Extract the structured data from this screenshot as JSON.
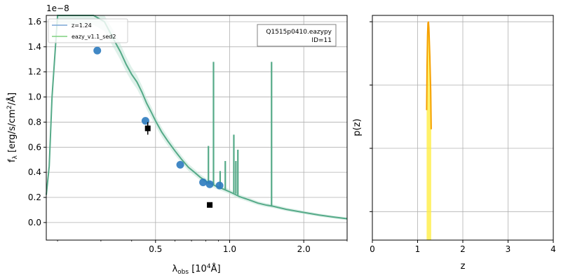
{
  "chart_data": [
    {
      "type": "line",
      "panel": "sed",
      "offset_label": "1e−8",
      "xlabel_html": "λ<tspan dy='3' font-size='9'>obs</tspan><tspan dy='-3'> [10</tspan><tspan dy='-5' font-size='9'>4</tspan><tspan dy='5'>Å]</tspan>",
      "ylabel": "f_λ [erg/s/cm²/Å]",
      "x_scale": "log",
      "xlim": [
        0.18,
        3.0
      ],
      "ylim": [
        -0.14,
        1.65
      ],
      "x_ticks": [
        {
          "value": 0.5,
          "label": "0.5"
        },
        {
          "value": 1.0,
          "label": "1.0"
        },
        {
          "value": 2.0,
          "label": "2.0"
        }
      ],
      "y_ticks": [
        {
          "value": 0.0,
          "label": "0.0"
        },
        {
          "value": 0.2,
          "label": "0.2"
        },
        {
          "value": 0.4,
          "label": "0.4"
        },
        {
          "value": 0.6,
          "label": "0.6"
        },
        {
          "value": 0.8,
          "label": "0.8"
        },
        {
          "value": 1.0,
          "label": "1.0"
        },
        {
          "value": 1.2,
          "label": "1.2"
        },
        {
          "value": 1.4,
          "label": "1.4"
        },
        {
          "value": 1.6,
          "label": "1.6"
        }
      ],
      "grid": true,
      "legend_position": "top-left",
      "legend": [
        {
          "label": "z=1.24",
          "color": "#7aa6d6"
        },
        {
          "label": "eazy_v1.1_sed2",
          "color": "#7fd07f"
        }
      ],
      "annotation": {
        "line1": "Q1515p0410.eazypy",
        "line2": "ID=11"
      },
      "series": [
        {
          "role": "template-continuum",
          "color": "#55aa88",
          "x": [
            0.18,
            0.185,
            0.19,
            0.2,
            0.22,
            0.25,
            0.28,
            0.31,
            0.34,
            0.36,
            0.38,
            0.4,
            0.42,
            0.44,
            0.46,
            0.48,
            0.5,
            0.53,
            0.56,
            0.6,
            0.64,
            0.68,
            0.72,
            0.76,
            0.8,
            0.84,
            0.88,
            0.92,
            0.96,
            1.0,
            1.05,
            1.1,
            1.2,
            1.3,
            1.4,
            1.5,
            1.7,
            2.0,
            2.3,
            2.6,
            3.0
          ],
          "y": [
            0.22,
            0.45,
            1.0,
            1.65,
            1.65,
            1.65,
            1.65,
            1.6,
            1.45,
            1.36,
            1.26,
            1.18,
            1.12,
            1.04,
            0.95,
            0.88,
            0.81,
            0.72,
            0.65,
            0.57,
            0.5,
            0.44,
            0.4,
            0.36,
            0.33,
            0.31,
            0.29,
            0.275,
            0.26,
            0.245,
            0.225,
            0.205,
            0.18,
            0.155,
            0.14,
            0.13,
            0.105,
            0.08,
            0.06,
            0.045,
            0.03
          ]
        }
      ],
      "emission_lines": [
        {
          "x": 0.82,
          "y_base": 0.31,
          "y_peak": 0.61
        },
        {
          "x": 0.86,
          "y_base": 0.3,
          "y_peak": 1.28
        },
        {
          "x": 0.915,
          "y_base": 0.285,
          "y_peak": 0.41
        },
        {
          "x": 0.96,
          "y_base": 0.26,
          "y_peak": 0.49
        },
        {
          "x": 1.04,
          "y_base": 0.235,
          "y_peak": 0.7
        },
        {
          "x": 1.06,
          "y_base": 0.23,
          "y_peak": 0.49
        },
        {
          "x": 1.08,
          "y_base": 0.22,
          "y_peak": 0.58
        },
        {
          "x": 1.48,
          "y_base": 0.13,
          "y_peak": 1.28
        }
      ],
      "model_photometry": {
        "color": "#2c7bbf",
        "points": [
          {
            "x": 0.29,
            "y": 1.37
          },
          {
            "x": 0.455,
            "y": 0.81
          },
          {
            "x": 0.63,
            "y": 0.46
          },
          {
            "x": 0.78,
            "y": 0.32
          },
          {
            "x": 0.83,
            "y": 0.305
          },
          {
            "x": 0.91,
            "y": 0.295
          }
        ]
      },
      "observed_photometry": {
        "color": "#000000",
        "points": [
          {
            "x": 0.465,
            "y": 0.75,
            "err": 0.05
          },
          {
            "x": 0.83,
            "y": 0.14,
            "err": 0.02
          }
        ]
      }
    },
    {
      "type": "line",
      "panel": "pz",
      "xlabel": "z",
      "ylabel": "p(z)",
      "y_scale": "log",
      "xlim": [
        0,
        4
      ],
      "x_ticks": [
        {
          "value": 0,
          "label": "0"
        },
        {
          "value": 1,
          "label": "1"
        },
        {
          "value": 2,
          "label": "2"
        },
        {
          "value": 3,
          "label": "3"
        },
        {
          "value": 4,
          "label": "4"
        }
      ],
      "grid": true,
      "series": [
        {
          "name": "",
          "color": "#f5a000",
          "fill": "#ffee44",
          "x": [
            1.2,
            1.21,
            1.22,
            1.23,
            1.24,
            1.25,
            1.27,
            1.29,
            1.3
          ],
          "y": [
            0.04,
            0.2,
            0.6,
            0.95,
            1.0,
            0.8,
            0.3,
            0.08,
            0.02
          ]
        }
      ]
    }
  ]
}
